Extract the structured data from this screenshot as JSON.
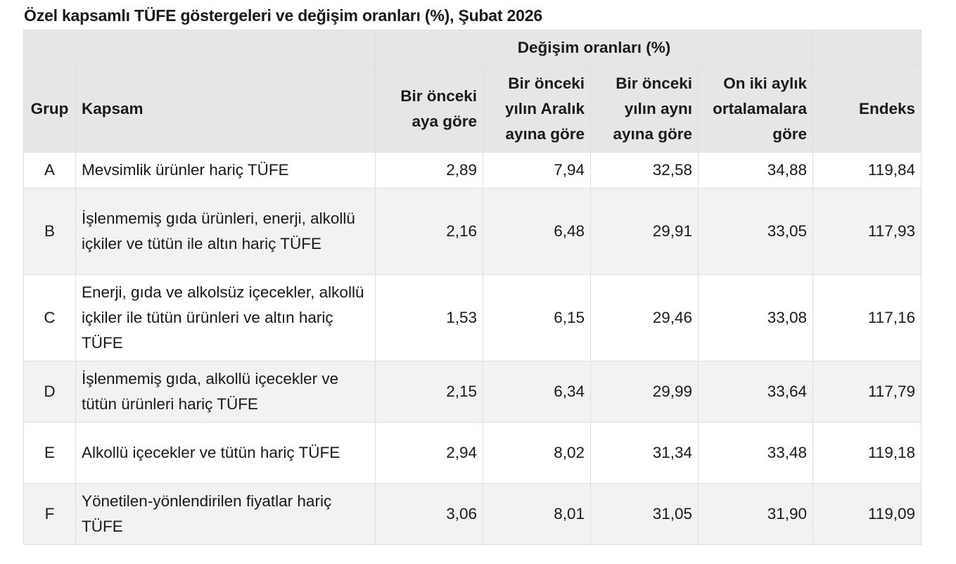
{
  "title": "Özel kapsamlı TÜFE göstergeleri ve değişim oranları (%), Şubat 2026",
  "header": {
    "group_label": "Değişim oranları (%)",
    "columns": {
      "grup": "Grup",
      "kapsam": "Kapsam",
      "prev_month": "Bir önceki aya göre",
      "prev_dec": "Bir önceki yılın Aralık ayına göre",
      "prev_year_month": "Bir önceki yılın aynı ayına göre",
      "twelve_month_avg": "On iki aylık ortalamalara göre",
      "endeks": "Endeks"
    }
  },
  "rows": [
    {
      "grup": "A",
      "kapsam": "Mevsimlik ürünler hariç TÜFE",
      "prev_month": "2,89",
      "prev_dec": "7,94",
      "prev_year_month": "32,58",
      "twelve_month_avg": "34,88",
      "endeks": "119,84"
    },
    {
      "grup": "B",
      "kapsam": "İşlenmemiş gıda ürünleri, enerji, alkollü içkiler ve tütün ile altın hariç TÜFE",
      "prev_month": "2,16",
      "prev_dec": "6,48",
      "prev_year_month": "29,91",
      "twelve_month_avg": "33,05",
      "endeks": "117,93"
    },
    {
      "grup": "C",
      "kapsam": "Enerji, gıda ve alkolsüz içecekler, alkollü içkiler ile tütün ürünleri ve altın hariç TÜFE",
      "prev_month": "1,53",
      "prev_dec": "6,15",
      "prev_year_month": "29,46",
      "twelve_month_avg": "33,08",
      "endeks": "117,16"
    },
    {
      "grup": "D",
      "kapsam": "İşlenmemiş gıda, alkollü içecekler ve tütün ürünleri hariç TÜFE",
      "prev_month": "2,15",
      "prev_dec": "6,34",
      "prev_year_month": "29,99",
      "twelve_month_avg": "33,64",
      "endeks": "117,79"
    },
    {
      "grup": "E",
      "kapsam": "Alkollü içecekler ve tütün hariç TÜFE",
      "prev_month": "2,94",
      "prev_dec": "8,02",
      "prev_year_month": "31,34",
      "twelve_month_avg": "33,48",
      "endeks": "119,18"
    },
    {
      "grup": "F",
      "kapsam": "Yönetilen-yönlendirilen fiyatlar hariç TÜFE",
      "prev_month": "3,06",
      "prev_dec": "8,01",
      "prev_year_month": "31,05",
      "twelve_month_avg": "31,90",
      "endeks": "119,09"
    }
  ]
}
